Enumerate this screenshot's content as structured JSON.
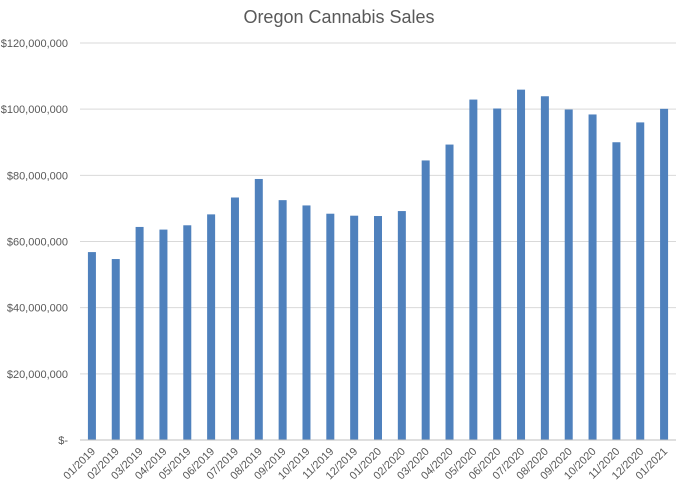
{
  "chart_data": {
    "type": "bar",
    "title": "Oregon Cannabis Sales",
    "xlabel": "",
    "ylabel": "",
    "ylim": [
      0,
      120000000
    ],
    "yticks": [
      {
        "value": 0,
        "label": "$-"
      },
      {
        "value": 20000000,
        "label": "$20,000,000"
      },
      {
        "value": 40000000,
        "label": "$40,000,000"
      },
      {
        "value": 60000000,
        "label": "$60,000,000"
      },
      {
        "value": 80000000,
        "label": "$80,000,000"
      },
      {
        "value": 100000000,
        "label": "$100,000,000"
      },
      {
        "value": 120000000,
        "label": "$120,000,000"
      }
    ],
    "grid": true,
    "legend": "none",
    "bar_color": "#4f81bd",
    "categories": [
      "01/2019",
      "02/2019",
      "03/2019",
      "04/2019",
      "05/2019",
      "06/2019",
      "07/2019",
      "08/2019",
      "09/2019",
      "10/2019",
      "11/2019",
      "12/2019",
      "01/2020",
      "02/2020",
      "03/2020",
      "04/2020",
      "05/2020",
      "06/2020",
      "07/2020",
      "08/2020",
      "09/2020",
      "10/2020",
      "11/2020",
      "12/2020",
      "01/2021"
    ],
    "values": [
      56800000,
      54700000,
      64400000,
      63600000,
      64900000,
      68200000,
      73300000,
      78900000,
      72500000,
      70900000,
      68400000,
      67800000,
      67700000,
      69200000,
      84500000,
      89300000,
      102900000,
      100200000,
      105900000,
      103900000,
      99900000,
      98400000,
      90000000,
      96000000,
      100100000
    ]
  }
}
